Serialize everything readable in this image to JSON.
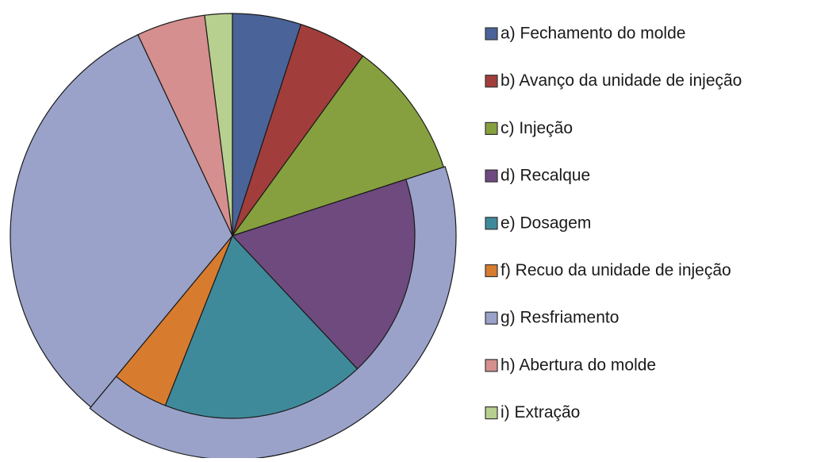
{
  "chart_data": {
    "type": "pie",
    "categories": [
      "a) Fechamento do molde",
      "b) Avanço da unidade de injeção",
      "c) Injeção",
      "d) Recalque",
      "e) Dosagem",
      "f) Recuo da unidade de injeção",
      "g) Resfriamento",
      "h) Abertura do molde",
      "i) Extração"
    ],
    "values": [
      5,
      5,
      10,
      18,
      18,
      5,
      32,
      5,
      2
    ],
    "colors": [
      "#4a6398",
      "#a13e3b",
      "#86a03f",
      "#6e4a7e",
      "#3f8a9a",
      "#d77c2f",
      "#9aa2c9",
      "#d58f8e",
      "#b8d08f"
    ],
    "legend": "right"
  }
}
